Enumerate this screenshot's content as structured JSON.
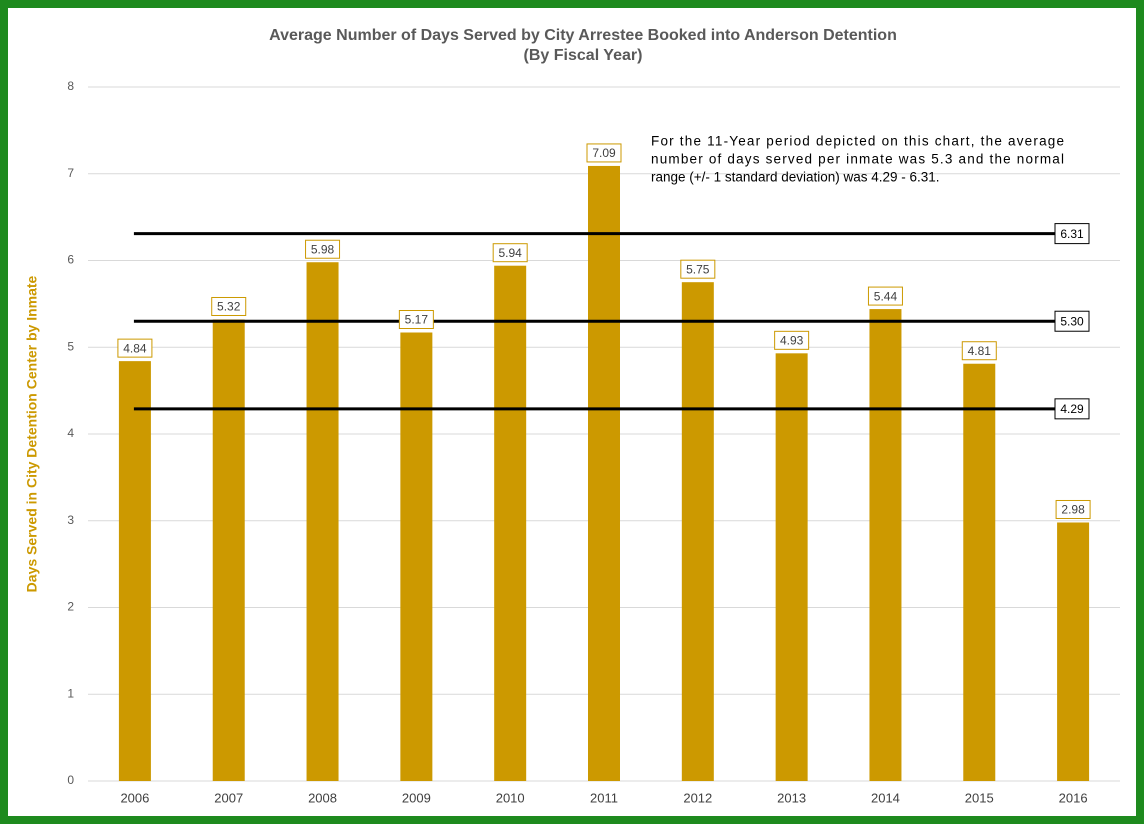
{
  "chart_data": {
    "type": "bar",
    "title": "Average Number of Days Served by City Arrestee Booked into Anderson Detention",
    "subtitle": "(By Fiscal Year)",
    "y_label": "Days Served in City Detention Center by Inmate",
    "annotation": [
      "For the 11-Year period depicted on this chart, the average",
      "number of days served per inmate was 5.3 and the normal",
      "range (+/- 1 standard deviation) was 4.29 - 6.31."
    ],
    "categories": [
      "2006",
      "2007",
      "2008",
      "2009",
      "2010",
      "2011",
      "2012",
      "2013",
      "2014",
      "2015",
      "2016"
    ],
    "values": [
      4.84,
      5.32,
      5.98,
      5.17,
      5.94,
      7.09,
      5.75,
      4.93,
      5.44,
      4.81,
      2.98
    ],
    "color": "#cc9900",
    "reference_lines": [
      {
        "value": 6.31,
        "label": "6.31"
      },
      {
        "value": 5.3,
        "label": "5.30"
      },
      {
        "value": 4.29,
        "label": "4.29"
      }
    ],
    "ylim": [
      0,
      8
    ],
    "yticks": [
      0,
      1,
      2,
      3,
      4,
      5,
      6,
      7,
      8
    ],
    "grid": true
  }
}
